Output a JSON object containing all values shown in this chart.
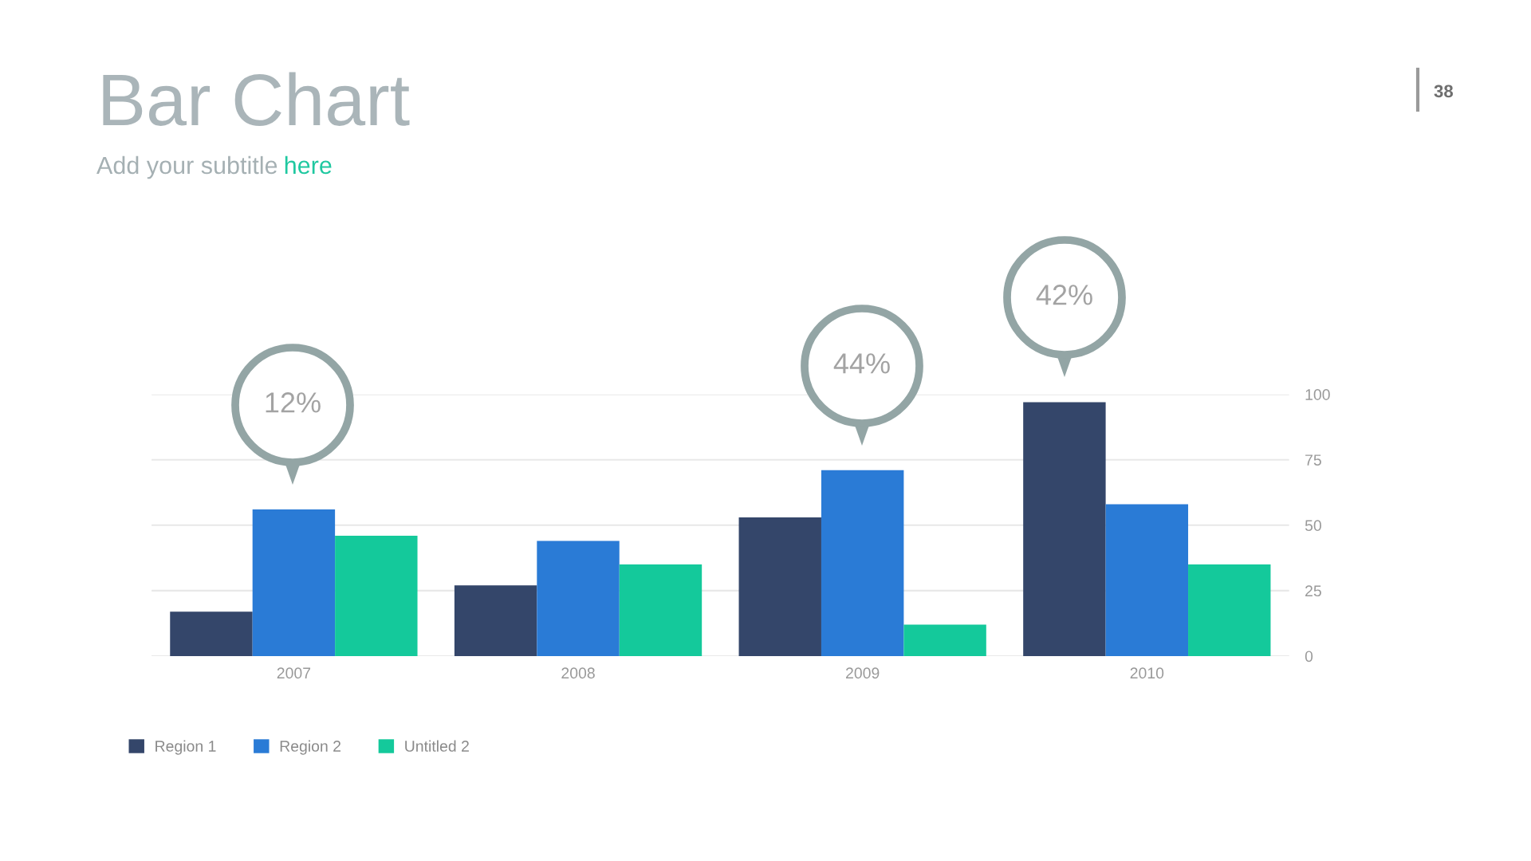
{
  "chart_data": {
    "type": "bar",
    "title": "Bar Chart",
    "subtitle": "Add your subtitle here",
    "categories": [
      "2007",
      "2008",
      "2009",
      "2010"
    ],
    "series": [
      {
        "name": "Region 1",
        "color": "#34466a",
        "values": [
          17,
          27,
          53,
          97
        ]
      },
      {
        "name": "Region 2",
        "color": "#2a7bd6",
        "values": [
          56,
          44,
          71,
          58
        ]
      },
      {
        "name": "Untitled 2",
        "color": "#14c99b",
        "values": [
          46,
          35,
          12,
          35
        ]
      }
    ],
    "ylim": [
      0,
      100
    ],
    "yticks": [
      0,
      25,
      50,
      75,
      100
    ],
    "grid": "y",
    "legend": "bottom left",
    "annotations": [
      "38",
      "12%",
      "44%",
      "42%"
    ]
  }
}
